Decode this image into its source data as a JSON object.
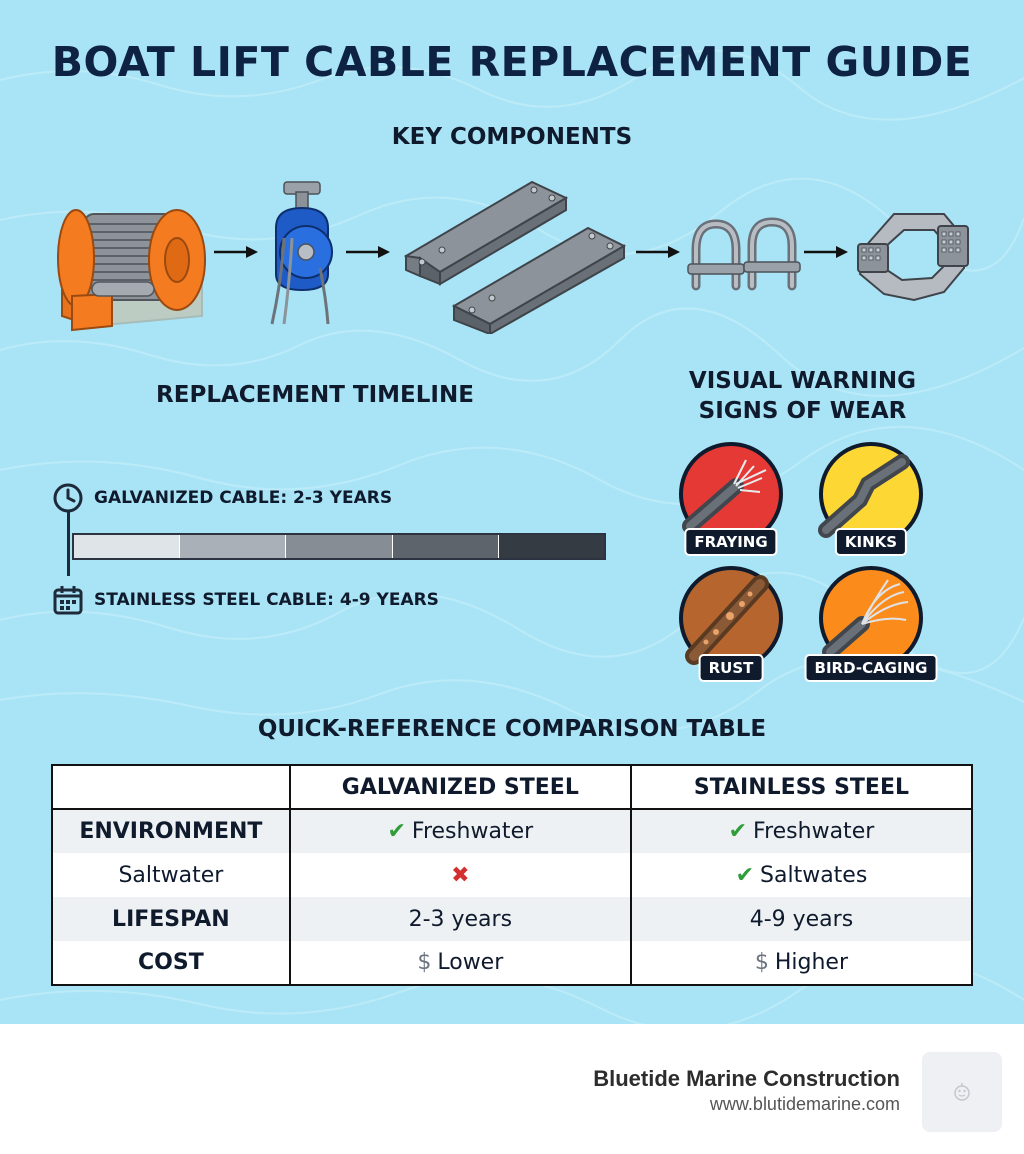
{
  "title": "BOAT LIFT CABLE REPLACEMENT GUIDE",
  "key_components": {
    "title": "KEY COMPONENTS",
    "items": [
      {
        "icon": "winch-drum-icon"
      },
      {
        "icon": "pulley-block-icon"
      },
      {
        "icon": "steel-beams-icon"
      },
      {
        "icon": "cable-clamps-icon"
      },
      {
        "icon": "cable-bracket-icon"
      }
    ]
  },
  "timeline": {
    "title": "REPLACEMENT TIMELINE",
    "galvanized_label": "GALVANIZED CABLE: 2-3 YEARS",
    "stainless_label": "STAINLESS STEEL CABLE: 4-9 YEARS",
    "bar_colors": [
      "#dfe4e8",
      "#a9b0b7",
      "#868d95",
      "#5d646c",
      "#353b42"
    ]
  },
  "warning_signs": {
    "title_line1": "VISUAL WARNING",
    "title_line2": "SIGNS OF WEAR",
    "items": [
      {
        "label": "FRAYING",
        "color": "#e53935",
        "icon": "frayed-cable-icon"
      },
      {
        "label": "KINKS",
        "color": "#fdd835",
        "icon": "kinked-cable-icon"
      },
      {
        "label": "RUST",
        "color": "#b5652d",
        "icon": "rusty-cable-icon"
      },
      {
        "label": "BIRD-CAGING",
        "color": "#fb8c1c",
        "icon": "bird-caging-cable-icon"
      }
    ]
  },
  "comparison": {
    "title": "QUICK-REFERENCE COMPARISON TABLE",
    "headers": [
      "",
      "GALVANIZED STEEL",
      "STAINLESS STEEL"
    ],
    "rows": [
      {
        "label": "ENVIRONMENT",
        "galvanized": "Freshwater",
        "stainless": "Freshwater"
      },
      {
        "label": "Saltwater",
        "galvanized": "",
        "stainless": "Saltwates"
      },
      {
        "label": "LIFESPAN",
        "galvanized": "2-3 years",
        "stainless": "4-9 years"
      },
      {
        "label": "COST",
        "galvanized": "Lower",
        "stainless": "Higher"
      }
    ]
  },
  "footer": {
    "company": "Bluetide Marine Construction",
    "url": "www.blutidemarine.com"
  }
}
